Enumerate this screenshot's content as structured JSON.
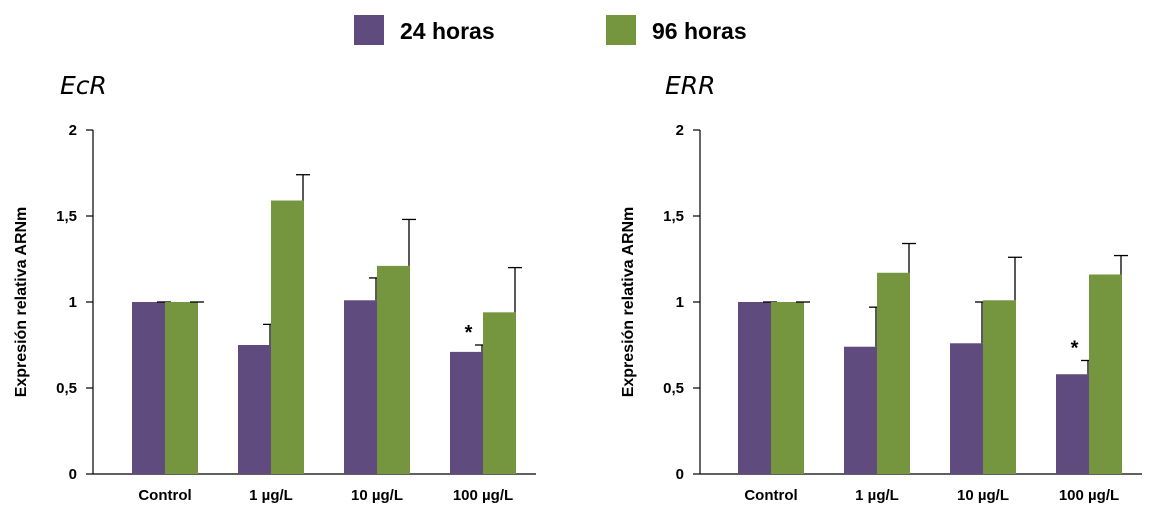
{
  "legend": [
    {
      "label": "24 horas",
      "color": "#5f4b7e"
    },
    {
      "label": "96 horas",
      "color": "#76953f"
    }
  ],
  "chart_data": [
    {
      "type": "bar",
      "title": "EcR",
      "ylabel": "Expresión relativa ARNm",
      "xlabel": "",
      "ylim": [
        0,
        2
      ],
      "yticks": [
        0,
        0.5,
        1,
        1.5,
        2
      ],
      "ytick_labels": [
        "0",
        "0,5",
        "1",
        "1,5",
        "2"
      ],
      "categories": [
        "Control",
        "1 µg/L",
        "10 µg/L",
        "100 µg/L"
      ],
      "series": [
        {
          "name": "24 horas",
          "values": [
            1.0,
            0.75,
            1.01,
            0.71
          ],
          "errors": [
            0.0,
            0.12,
            0.13,
            0.04
          ],
          "significance": [
            "",
            "",
            "",
            "*"
          ]
        },
        {
          "name": "96 horas",
          "values": [
            1.0,
            1.59,
            1.21,
            0.94
          ],
          "errors": [
            0.0,
            0.15,
            0.27,
            0.26
          ],
          "significance": [
            "",
            "",
            "",
            ""
          ]
        }
      ]
    },
    {
      "type": "bar",
      "title": "ERR",
      "ylabel": "Expresión relativa ARNm",
      "xlabel": "",
      "ylim": [
        0,
        2
      ],
      "yticks": [
        0,
        0.5,
        1,
        1.5,
        2
      ],
      "ytick_labels": [
        "0",
        "0,5",
        "1",
        "1,5",
        "2"
      ],
      "categories": [
        "Control",
        "1 µg/L",
        "10 µg/L",
        "100 µg/L"
      ],
      "series": [
        {
          "name": "24 horas",
          "values": [
            1.0,
            0.74,
            0.76,
            0.58
          ],
          "errors": [
            0.0,
            0.23,
            0.24,
            0.08
          ],
          "significance": [
            "",
            "",
            "",
            "*"
          ]
        },
        {
          "name": "96 horas",
          "values": [
            1.0,
            1.17,
            1.01,
            1.16
          ],
          "errors": [
            0.0,
            0.17,
            0.25,
            0.11
          ],
          "significance": [
            "",
            "",
            "",
            ""
          ]
        }
      ]
    }
  ]
}
